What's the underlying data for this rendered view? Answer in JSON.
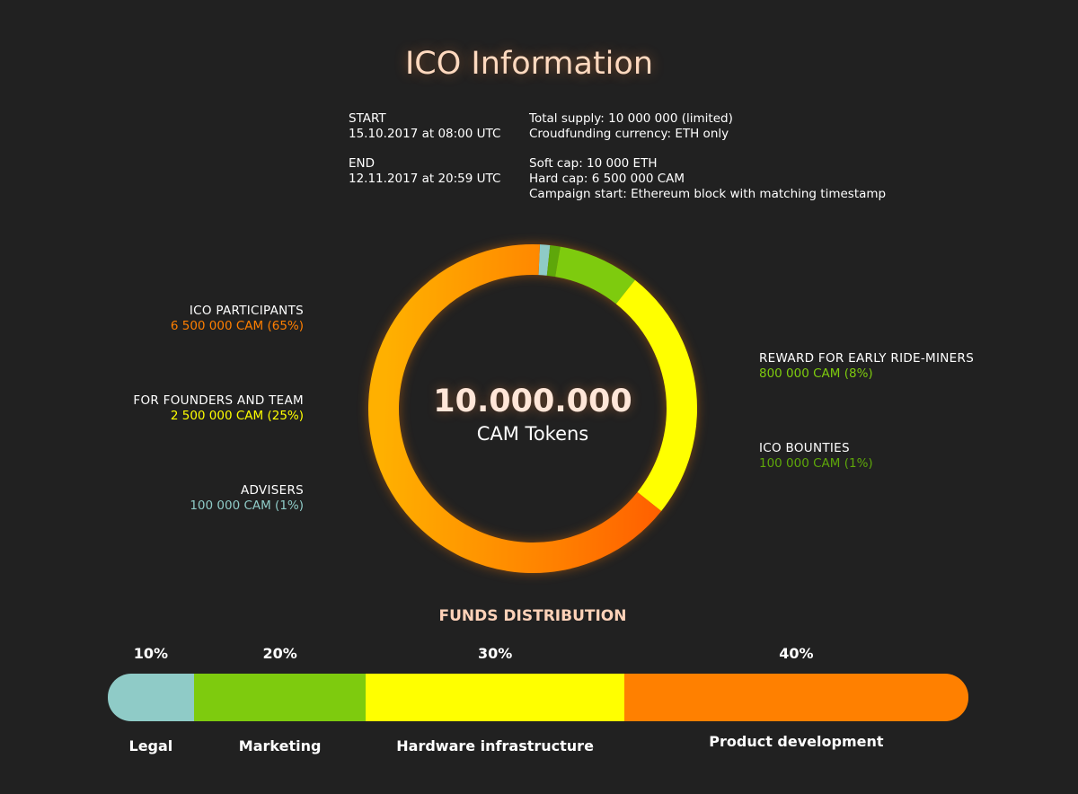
{
  "title": "ICO Information",
  "schedule": {
    "start_label": "START",
    "start_value": "15.10.2017 at 08:00 UTC",
    "end_label": "END",
    "end_value": "12.11.2017 at 20:59 UTC"
  },
  "details": {
    "total_supply": "Total supply: 10 000 000 (limited)",
    "currency": "Croudfunding currency: ETH only",
    "soft_cap": "Soft cap: 10 000 ETH",
    "hard_cap": "Hard cap: 6 500 000 CAM",
    "campaign_start": "Campaign start: Ethereum block with matching timestamp"
  },
  "colors": {
    "ico_participants": "#ff7f00",
    "founders": "#ffff00",
    "advisers": "#8fcbc7",
    "early_riders": "#7ecb0e",
    "bounties": "#5ea70a"
  },
  "chart_data": [
    {
      "type": "pie",
      "center_value": "10.000.000",
      "center_unit": "CAM Tokens",
      "slices": [
        {
          "label": "ICO PARTICIPANTS",
          "value_text": "6 500 000 CAM (65%)",
          "value": 65,
          "color": "#ff7f00"
        },
        {
          "label": "FOR FOUNDERS AND TEAM",
          "value_text": "2 500 000 CAM (25%)",
          "value": 25,
          "color": "#ffff00"
        },
        {
          "label": "ADVISERS",
          "value_text": "100 000 CAM (1%)",
          "value": 1,
          "color": "#8fcbc7"
        },
        {
          "label": "REWARD FOR EARLY RIDE-MINERS",
          "value_text": "800 000 CAM (8%)",
          "value": 8,
          "color": "#7ecb0e"
        },
        {
          "label": "ICO BOUNTIES",
          "value_text": "100 000 CAM (1%)",
          "value": 1,
          "color": "#5ea70a"
        }
      ]
    },
    {
      "type": "bar",
      "title": "FUNDS DISTRIBUTION",
      "categories": [
        "Legal",
        "Marketing",
        "Hardware infrastructure",
        "Product development"
      ],
      "values": [
        10,
        20,
        30,
        40
      ],
      "value_labels": [
        "10%",
        "20%",
        "30%",
        "40%"
      ],
      "colors": [
        "#8fcbc7",
        "#7ecb0e",
        "#ffff00",
        "#ff8000"
      ]
    }
  ]
}
